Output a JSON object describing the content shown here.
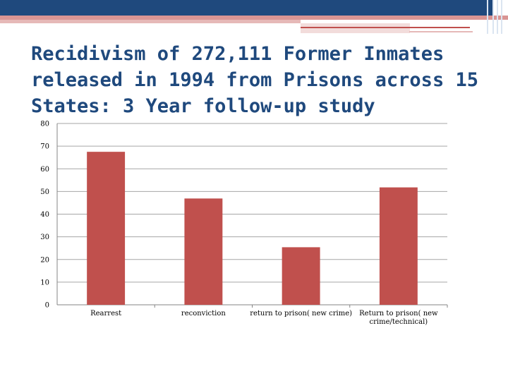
{
  "title": {
    "bold": "Recidivism of",
    "rest": " 272,111 Former Inmates released in 1994 from Prisons across 15 States: 3 Year follow-up study"
  },
  "colors": {
    "bar": "#c0504d",
    "title": "#1f497d",
    "band": "#1f497d"
  },
  "chart_data": {
    "type": "bar",
    "title": "Recidivism of 272,111 Former Inmates released in 1994 from Prisons across 15 States: 3 Year follow-up study",
    "categories": [
      "Rearrest",
      "reconviction",
      "return to prison( new crime)",
      "Return to prison( new crime/technical)"
    ],
    "category_lines": [
      [
        "Rearrest"
      ],
      [
        "reconviction"
      ],
      [
        "return to prison( new crime)"
      ],
      [
        "Return to prison( new",
        "crime/technical)"
      ]
    ],
    "values": [
      67.5,
      46.9,
      25.4,
      51.8
    ],
    "ylim": [
      0,
      80
    ],
    "yticks": [
      0,
      10,
      20,
      30,
      40,
      50,
      60,
      70,
      80
    ],
    "xlabel": "",
    "ylabel": "",
    "grid": true,
    "legend": "none"
  }
}
